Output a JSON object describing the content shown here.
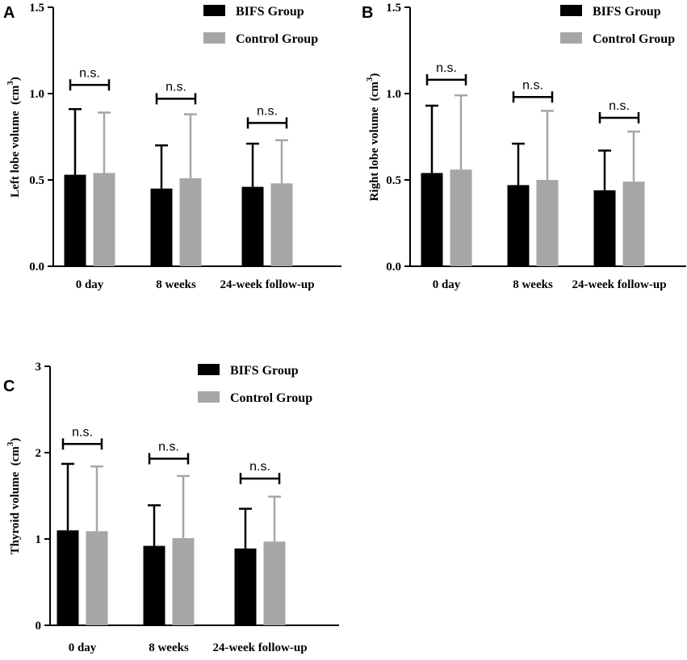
{
  "colors": {
    "bifs": "#000000",
    "control": "#a6a6a6",
    "axis": "#000000"
  },
  "chart_data": [
    {
      "panel": "A",
      "type": "bar",
      "ylabel_main": "Left lobe volume",
      "ylabel_unit_base": "(cm",
      "ylabel_unit_sup": "3",
      "ylabel_unit_close": ")",
      "ylim": [
        0,
        1.5
      ],
      "yticks": [
        0,
        0.5,
        1.0,
        1.5
      ],
      "ytick_labels": [
        "0.0",
        "0.5",
        "1.0",
        "1.5"
      ],
      "categories": [
        "0 day",
        "8 weeks",
        "24-week follow-up"
      ],
      "legend": [
        "BIFS Group",
        "Control Group"
      ],
      "series": [
        {
          "name": "BIFS Group",
          "values": [
            0.53,
            0.45,
            0.46
          ],
          "errors": [
            0.38,
            0.25,
            0.25
          ]
        },
        {
          "name": "Control Group",
          "values": [
            0.54,
            0.51,
            0.48
          ],
          "errors": [
            0.35,
            0.37,
            0.25
          ]
        }
      ],
      "significance": [
        "n.s.",
        "n.s.",
        "n.s."
      ],
      "sig_levels": [
        1.05,
        0.97,
        0.83
      ]
    },
    {
      "panel": "B",
      "type": "bar",
      "ylabel_main": "Right lobe volume",
      "ylabel_unit_base": "(cm",
      "ylabel_unit_sup": "3",
      "ylabel_unit_close": ")",
      "ylim": [
        0,
        1.5
      ],
      "yticks": [
        0,
        0.5,
        1.0,
        1.5
      ],
      "ytick_labels": [
        "0.0",
        "0.5",
        "1.0",
        "1.5"
      ],
      "categories": [
        "0 day",
        "8 weeks",
        "24-week follow-up"
      ],
      "legend": [
        "BIFS Group",
        "Control Group"
      ],
      "series": [
        {
          "name": "BIFS Group",
          "values": [
            0.54,
            0.47,
            0.44
          ],
          "errors": [
            0.39,
            0.24,
            0.23
          ]
        },
        {
          "name": "Control Group",
          "values": [
            0.56,
            0.5,
            0.49
          ],
          "errors": [
            0.43,
            0.4,
            0.29
          ]
        }
      ],
      "significance": [
        "n.s.",
        "n.s.",
        "n.s."
      ],
      "sig_levels": [
        1.08,
        0.98,
        0.86
      ]
    },
    {
      "panel": "C",
      "type": "bar",
      "ylabel_main": "Thyroid volume",
      "ylabel_unit_base": "(cm",
      "ylabel_unit_sup": "3",
      "ylabel_unit_close": ")",
      "ylim": [
        0,
        3
      ],
      "yticks": [
        0,
        1,
        2,
        3
      ],
      "ytick_labels": [
        "0",
        "1",
        "2",
        "3"
      ],
      "categories": [
        "0 day",
        "8 weeks",
        "24-week follow-up"
      ],
      "legend": [
        "BIFS Group",
        "Control Group"
      ],
      "series": [
        {
          "name": "BIFS Group",
          "values": [
            1.1,
            0.92,
            0.89
          ],
          "errors": [
            0.77,
            0.47,
            0.46
          ]
        },
        {
          "name": "Control Group",
          "values": [
            1.09,
            1.01,
            0.97
          ],
          "errors": [
            0.75,
            0.72,
            0.52
          ]
        }
      ],
      "significance": [
        "n.s.",
        "n.s.",
        "n.s."
      ],
      "sig_levels": [
        2.1,
        1.93,
        1.7
      ]
    }
  ]
}
